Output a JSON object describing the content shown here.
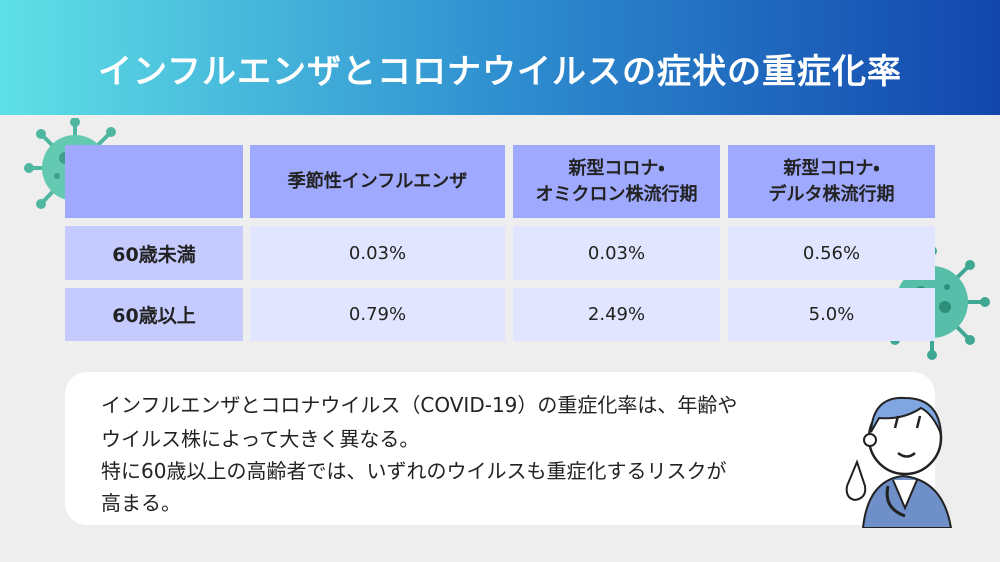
{
  "header": {
    "title": "インフルエンザとコロナウイルスの症状の重症化率"
  },
  "table": {
    "columns": [
      [
        "季節性インフルエンザ"
      ],
      [
        "新型コロナ・",
        "オミクロン株流行期"
      ],
      [
        "新型コロナ・",
        "デルタ株流行期"
      ]
    ],
    "rows": [
      [
        "60歳未満",
        "0.03%",
        "0.03%",
        "0.56%"
      ],
      [
        "60歳以上",
        "0.79%",
        "2.49%",
        "5.0%"
      ]
    ]
  },
  "note": {
    "lines": [
      "インフルエンザとコロナウイルス（COVID-19）の重症化率は、年齢や",
      "ウイルス株によって大きく異なる。",
      "特に60歳以上の高齢者では、いずれのウイルスも重症化するリスクが",
      "高まる。"
    ]
  }
}
